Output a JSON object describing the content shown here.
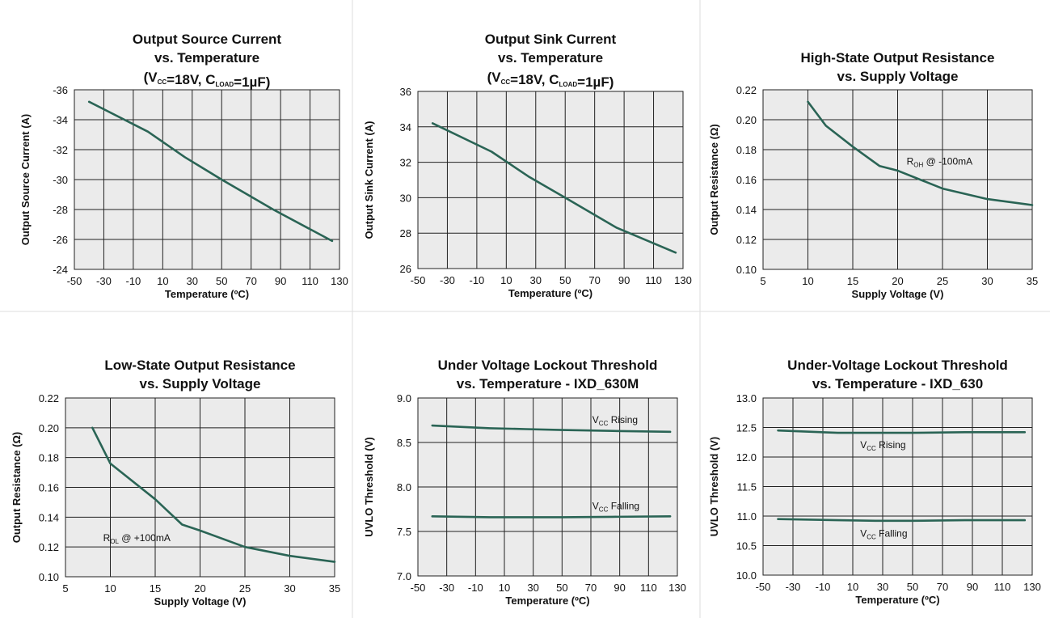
{
  "chart_data": [
    {
      "type": "line",
      "title_lines": [
        "Output Source Current",
        "vs. Temperature"
      ],
      "title_cond": {
        "p1": "(V",
        "s1": "CC",
        "p2": "=18V, C",
        "s2": "LOAD",
        "p3": "=1µF)"
      },
      "xlabel": "Temperature (ºC)",
      "ylabel": "Output Source Current (A)",
      "xlim": [
        -50,
        130
      ],
      "ylim": [
        -24,
        -36
      ],
      "xticks": [
        "-50",
        "-30",
        "-10",
        "10",
        "30",
        "50",
        "70",
        "90",
        "110",
        "130"
      ],
      "yticks": [
        "-24",
        "-26",
        "-28",
        "-30",
        "-32",
        "-34",
        "-36"
      ],
      "grid": true,
      "series": [
        {
          "x": [
            -40,
            0,
            25,
            50,
            85,
            125
          ],
          "y": [
            -35.2,
            -33.2,
            -31.5,
            -30.0,
            -28.0,
            -25.9
          ]
        }
      ],
      "annotations": []
    },
    {
      "type": "line",
      "title_lines": [
        "Output Sink Current",
        "vs. Temperature"
      ],
      "title_cond": {
        "p1": "(V",
        "s1": "CC",
        "p2": "=18V, C",
        "s2": "LOAD",
        "p3": "=1µF)"
      },
      "xlabel": "Temperature (ºC)",
      "ylabel": "Output Sink Current (A)",
      "xlim": [
        -50,
        130
      ],
      "ylim": [
        26,
        36
      ],
      "xticks": [
        "-50",
        "-30",
        "-10",
        "10",
        "30",
        "50",
        "70",
        "90",
        "110",
        "130"
      ],
      "yticks": [
        "26",
        "28",
        "30",
        "32",
        "34",
        "36"
      ],
      "grid": true,
      "series": [
        {
          "x": [
            -40,
            0,
            25,
            50,
            85,
            125
          ],
          "y": [
            34.2,
            32.6,
            31.2,
            30.0,
            28.3,
            26.9
          ]
        }
      ],
      "annotations": []
    },
    {
      "type": "line",
      "title_lines": [
        "High-State Output Resistance",
        "vs. Supply Voltage"
      ],
      "xlabel": "Supply Voltage (V)",
      "ylabel": "Output Resistance (Ω)",
      "xlim": [
        5,
        35
      ],
      "ylim": [
        0.1,
        0.22
      ],
      "xticks": [
        "5",
        "10",
        "15",
        "20",
        "25",
        "30",
        "35"
      ],
      "yticks": [
        "0.10",
        "0.12",
        "0.14",
        "0.16",
        "0.18",
        "0.20",
        "0.22"
      ],
      "grid": true,
      "series": [
        {
          "x": [
            10,
            12,
            15,
            18,
            20,
            25,
            30,
            35
          ],
          "y": [
            0.212,
            0.196,
            0.182,
            0.169,
            0.166,
            0.154,
            0.147,
            0.143
          ]
        }
      ],
      "annotations": [
        {
          "main": "R",
          "sub": "OH",
          "rest": " @ -100mA",
          "x": 21,
          "y": 0.17
        }
      ]
    },
    {
      "type": "line",
      "title_lines": [
        "Low-State Output Resistance",
        "vs. Supply Voltage"
      ],
      "xlabel": "Supply Voltage (V)",
      "ylabel": "Output Resistance (Ω)",
      "xlim": [
        5,
        35
      ],
      "ylim": [
        0.1,
        0.22
      ],
      "xticks": [
        "5",
        "10",
        "15",
        "20",
        "25",
        "30",
        "35"
      ],
      "yticks": [
        "0.10",
        "0.12",
        "0.14",
        "0.16",
        "0.18",
        "0.20",
        "0.22"
      ],
      "grid": true,
      "series": [
        {
          "x": [
            8,
            10,
            15,
            18,
            20,
            25,
            30,
            35
          ],
          "y": [
            0.2,
            0.176,
            0.152,
            0.135,
            0.131,
            0.12,
            0.114,
            0.11
          ]
        }
      ],
      "annotations": [
        {
          "main": "R",
          "sub": "OL",
          "rest": " @ +100mA",
          "x": 9.2,
          "y": 0.124
        }
      ]
    },
    {
      "type": "line",
      "title_lines": [
        "Under Voltage Lockout Threshold",
        "vs.  Temperature - IXD_630M"
      ],
      "xlabel": "Temperature (ºC)",
      "ylabel": "UVLO Threshold (V)",
      "xlim": [
        -50,
        130
      ],
      "ylim": [
        7.0,
        9.0
      ],
      "xticks": [
        "-50",
        "-30",
        "-10",
        "10",
        "30",
        "50",
        "70",
        "90",
        "110",
        "130"
      ],
      "yticks": [
        "7.0",
        "7.5",
        "8.0",
        "8.5",
        "9.0"
      ],
      "grid": true,
      "series": [
        {
          "x": [
            -40,
            0,
            25,
            50,
            85,
            125
          ],
          "y": [
            8.69,
            8.66,
            8.65,
            8.64,
            8.63,
            8.62
          ]
        },
        {
          "x": [
            -40,
            0,
            25,
            50,
            85,
            125
          ],
          "y": [
            7.67,
            7.66,
            7.66,
            7.66,
            7.665,
            7.67
          ]
        }
      ],
      "annotations": [
        {
          "main": "V",
          "sub": "CC",
          "rest": " Rising",
          "x": 71,
          "y": 8.72
        },
        {
          "main": "V",
          "sub": "CC",
          "rest": " Falling",
          "x": 71,
          "y": 7.75
        }
      ]
    },
    {
      "type": "line",
      "title_lines": [
        "Under-Voltage Lockout Threshold",
        "vs.  Temperature - IXD_630"
      ],
      "xlabel": "Temperature (ºC)",
      "ylabel": "UVLO Threshold (V)",
      "xlim": [
        -50,
        130
      ],
      "ylim": [
        10.0,
        13.0
      ],
      "xticks": [
        "-50",
        "-30",
        "-10",
        "10",
        "30",
        "50",
        "70",
        "90",
        "110",
        "130"
      ],
      "yticks": [
        "10.0",
        "10.5",
        "11.0",
        "11.5",
        "12.0",
        "12.5",
        "13.0"
      ],
      "grid": true,
      "series": [
        {
          "x": [
            -40,
            0,
            25,
            50,
            85,
            125
          ],
          "y": [
            12.45,
            12.41,
            12.41,
            12.41,
            12.42,
            12.42
          ]
        },
        {
          "x": [
            -40,
            0,
            25,
            50,
            85,
            125
          ],
          "y": [
            10.95,
            10.93,
            10.92,
            10.92,
            10.93,
            10.93
          ]
        }
      ],
      "annotations": [
        {
          "main": "V",
          "sub": "CC",
          "rest": " Rising",
          "x": 15,
          "y": 12.15
        },
        {
          "main": "V",
          "sub": "CC",
          "rest": " Falling",
          "x": 15,
          "y": 10.65
        }
      ]
    }
  ],
  "colors": {
    "plot_bg": "#ebebeb",
    "grid": "#222222",
    "line": "#2a6455",
    "divider": "#dddddd"
  }
}
